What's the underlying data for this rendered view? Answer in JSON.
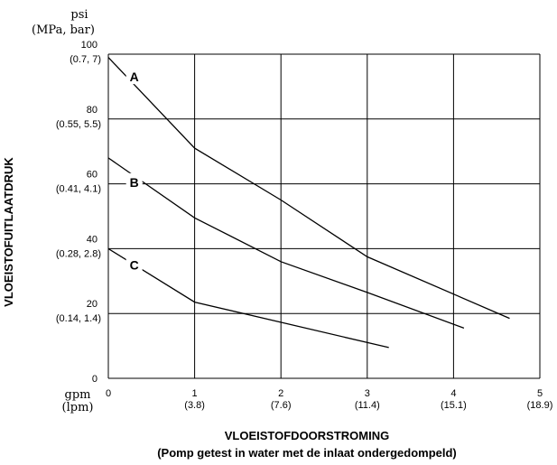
{
  "chart_data": {
    "type": "line",
    "title": "",
    "xlabel": "VLOEISTOFDOORSTROMING",
    "xlabel_sub": "(Pomp getest in water met de inlaat ondergedompeld)",
    "ylabel": "VLOEISTOFUITLAATDRUK",
    "y_unit_primary": "psi",
    "y_unit_secondary": "(MPa, bar)",
    "x_unit_primary": "gpm",
    "x_unit_secondary": "(lpm)",
    "xlim": [
      0,
      5
    ],
    "ylim": [
      0,
      100
    ],
    "grid": true,
    "x_ticks": [
      {
        "value": 0,
        "label": "0",
        "sub": ""
      },
      {
        "value": 1,
        "label": "1",
        "sub": "(3.8)"
      },
      {
        "value": 2,
        "label": "2",
        "sub": "(7.6)"
      },
      {
        "value": 3,
        "label": "3",
        "sub": "(11.4)"
      },
      {
        "value": 4,
        "label": "4",
        "sub": "(15.1)"
      },
      {
        "value": 5,
        "label": "5",
        "sub": "(18.9)"
      }
    ],
    "y_ticks": [
      {
        "value": 0,
        "label": "0",
        "sub": ""
      },
      {
        "value": 20,
        "label": "20",
        "sub": "(0.14, 1.4)"
      },
      {
        "value": 40,
        "label": "40",
        "sub": "(0.28, 2.8)"
      },
      {
        "value": 60,
        "label": "60",
        "sub": "(0.41, 4.1)"
      },
      {
        "value": 80,
        "label": "80",
        "sub": "(0.55, 5.5)"
      },
      {
        "value": 100,
        "label": "100",
        "sub": "(0.7, 7)"
      }
    ],
    "series": [
      {
        "name": "A",
        "x": [
          0,
          1,
          2,
          3,
          4.65
        ],
        "y": [
          99,
          71,
          55,
          37.5,
          18.5
        ]
      },
      {
        "name": "B",
        "x": [
          0,
          1,
          2,
          3,
          4.12
        ],
        "y": [
          68,
          49.5,
          36,
          26.5,
          15.5
        ]
      },
      {
        "name": "C",
        "x": [
          0,
          1,
          3.25
        ],
        "y": [
          40,
          23.5,
          9.5
        ]
      }
    ],
    "series_label_points": [
      {
        "name": "A",
        "x": 0.3,
        "y": 93
      },
      {
        "name": "B",
        "x": 0.3,
        "y": 60.5
      },
      {
        "name": "C",
        "x": 0.3,
        "y": 35
      }
    ]
  }
}
